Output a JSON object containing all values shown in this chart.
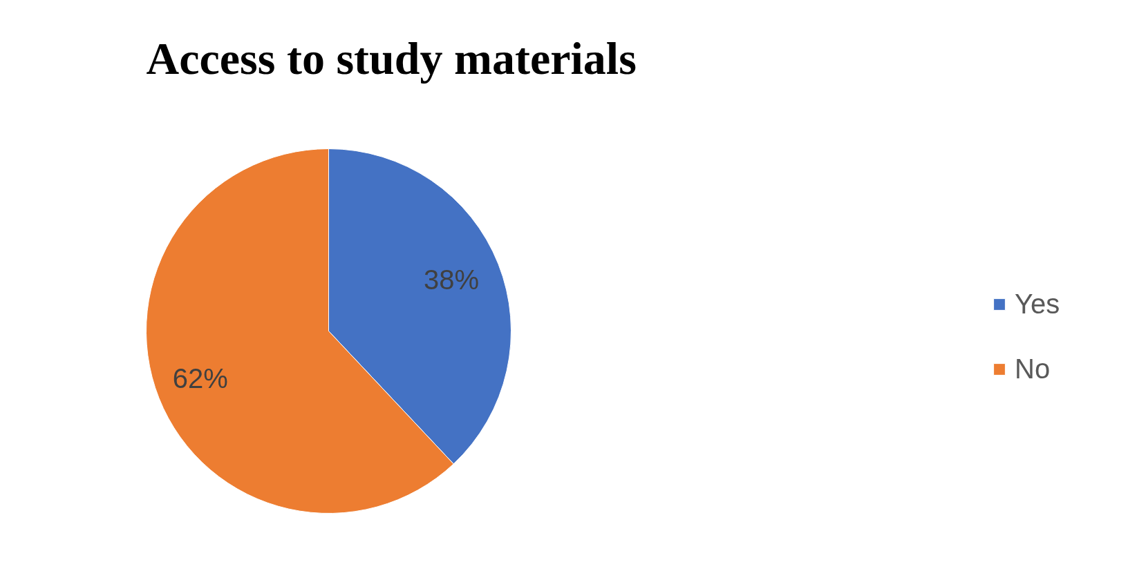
{
  "chart_data": {
    "type": "pie",
    "title": "Access to study materials",
    "categories": [
      "Yes",
      "No"
    ],
    "values": [
      38,
      62
    ],
    "colors": [
      "#4472c4",
      "#ed7d31"
    ],
    "value_labels": [
      "38%",
      "62%"
    ],
    "legend": "right"
  }
}
